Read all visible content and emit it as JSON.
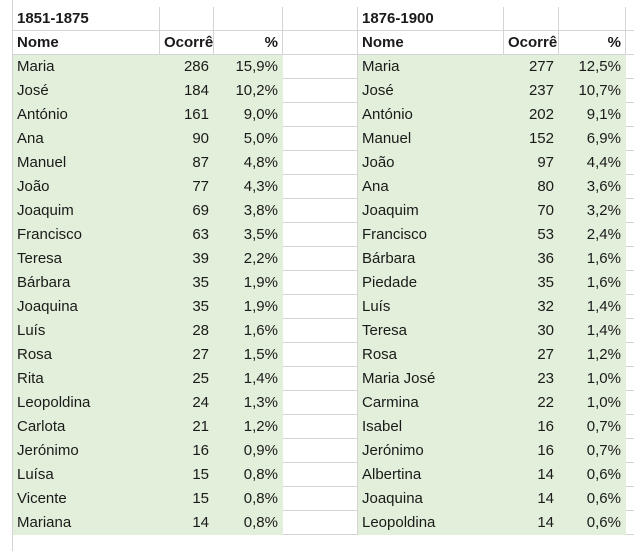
{
  "tables": [
    {
      "period": "1851-1875",
      "headers": {
        "name": "Nome",
        "count": "Ocorrê",
        "pct": "%"
      },
      "rows": [
        {
          "name": "Maria",
          "count": "286",
          "pct": "15,9%"
        },
        {
          "name": "José",
          "count": "184",
          "pct": "10,2%"
        },
        {
          "name": "António",
          "count": "161",
          "pct": "9,0%"
        },
        {
          "name": "Ana",
          "count": "90",
          "pct": "5,0%"
        },
        {
          "name": "Manuel",
          "count": "87",
          "pct": "4,8%"
        },
        {
          "name": "João",
          "count": "77",
          "pct": "4,3%"
        },
        {
          "name": "Joaquim",
          "count": "69",
          "pct": "3,8%"
        },
        {
          "name": "Francisco",
          "count": "63",
          "pct": "3,5%"
        },
        {
          "name": "Teresa",
          "count": "39",
          "pct": "2,2%"
        },
        {
          "name": "Bárbara",
          "count": "35",
          "pct": "1,9%"
        },
        {
          "name": "Joaquina",
          "count": "35",
          "pct": "1,9%"
        },
        {
          "name": "Luís",
          "count": "28",
          "pct": "1,6%"
        },
        {
          "name": "Rosa",
          "count": "27",
          "pct": "1,5%"
        },
        {
          "name": "Rita",
          "count": "25",
          "pct": "1,4%"
        },
        {
          "name": "Leopoldina",
          "count": "24",
          "pct": "1,3%"
        },
        {
          "name": "Carlota",
          "count": "21",
          "pct": "1,2%"
        },
        {
          "name": "Jerónimo",
          "count": "16",
          "pct": "0,9%"
        },
        {
          "name": "Luísa",
          "count": "15",
          "pct": "0,8%"
        },
        {
          "name": "Vicente",
          "count": "15",
          "pct": "0,8%"
        },
        {
          "name": "Mariana",
          "count": "14",
          "pct": "0,8%"
        }
      ]
    },
    {
      "period": "1876-1900",
      "headers": {
        "name": "Nome",
        "count": "Ocorrê",
        "pct": "%"
      },
      "rows": [
        {
          "name": "Maria",
          "count": "277",
          "pct": "12,5%"
        },
        {
          "name": "José",
          "count": "237",
          "pct": "10,7%"
        },
        {
          "name": "António",
          "count": "202",
          "pct": "9,1%"
        },
        {
          "name": "Manuel",
          "count": "152",
          "pct": "6,9%"
        },
        {
          "name": "João",
          "count": "97",
          "pct": "4,4%"
        },
        {
          "name": "Ana",
          "count": "80",
          "pct": "3,6%"
        },
        {
          "name": "Joaquim",
          "count": "70",
          "pct": "3,2%"
        },
        {
          "name": "Francisco",
          "count": "53",
          "pct": "2,4%"
        },
        {
          "name": "Bárbara",
          "count": "36",
          "pct": "1,6%"
        },
        {
          "name": "Piedade",
          "count": "35",
          "pct": "1,6%"
        },
        {
          "name": "Luís",
          "count": "32",
          "pct": "1,4%"
        },
        {
          "name": "Teresa",
          "count": "30",
          "pct": "1,4%"
        },
        {
          "name": "Rosa",
          "count": "27",
          "pct": "1,2%"
        },
        {
          "name": "Maria José",
          "count": "23",
          "pct": "1,0%"
        },
        {
          "name": "Carmina",
          "count": "22",
          "pct": "1,0%"
        },
        {
          "name": "Isabel",
          "count": "16",
          "pct": "0,7%"
        },
        {
          "name": "Jerónimo",
          "count": "16",
          "pct": "0,7%"
        },
        {
          "name": "Albertina",
          "count": "14",
          "pct": "0,6%"
        },
        {
          "name": "Joaquina",
          "count": "14",
          "pct": "0,6%"
        },
        {
          "name": "Leopoldina",
          "count": "14",
          "pct": "0,6%"
        }
      ]
    }
  ],
  "colors": {
    "row_fill": "#e2efda",
    "gridline": "#d4d4d4"
  }
}
